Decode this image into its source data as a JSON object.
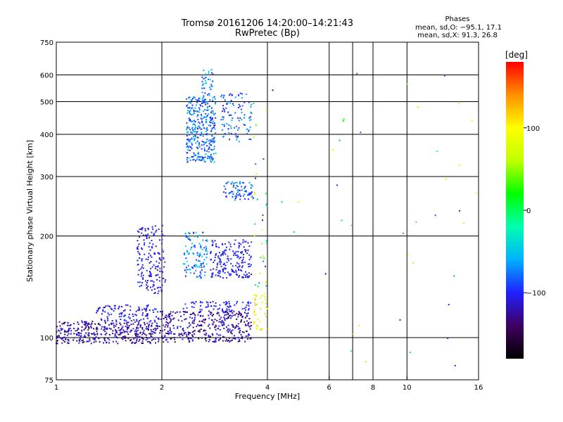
{
  "header": {
    "title_line1": "Tromsø 20161206 14:20:00–14:21:43",
    "title_line2": "RwPretec (Bp)"
  },
  "phase_box": {
    "heading": "Phases",
    "line_o": "mean, sd,O: −95.1, 17.1",
    "line_x": "mean, sd,X:  91.3, 26.8"
  },
  "chart_data": {
    "type": "scatter",
    "xlabel": "Frequency [MHz]",
    "ylabel": "Stationary phase Virtual Height [km]",
    "x_scale": "log",
    "y_scale": "log",
    "xlim": [
      1,
      16
    ],
    "ylim": [
      75,
      750
    ],
    "x_ticks": [
      1,
      2,
      4,
      6,
      8,
      10,
      16
    ],
    "x_tick_labels": [
      "1",
      "2",
      "4",
      "6",
      "8",
      "10",
      "16"
    ],
    "x_grid_lines": [
      2,
      4,
      6,
      7,
      8,
      10
    ],
    "y_ticks": [
      75,
      100,
      200,
      300,
      400,
      500,
      600,
      750
    ],
    "y_tick_labels": [
      "75",
      "100",
      "200",
      "300",
      "400",
      "500",
      "600",
      "750"
    ],
    "y_grid_lines": [
      100,
      200,
      300,
      400,
      500,
      600
    ],
    "grid": true,
    "colorbar": {
      "label": "[deg]",
      "range": [
        -180,
        180
      ],
      "ticks": [
        100,
        0,
        -100
      ],
      "tick_labels": [
        "100",
        "0",
        "−100"
      ],
      "colors": [
        "#000000",
        "#400060",
        "#2020ff",
        "#00b0ff",
        "#00ffb0",
        "#00ff00",
        "#c0ff00",
        "#ffff00",
        "#ff9000",
        "#ff0000"
      ]
    },
    "clusters": [
      {
        "f": [
          1.0,
          1.95
        ],
        "h": [
          96,
          112
        ],
        "n": 380,
        "phase": [
          -150,
          -95
        ]
      },
      {
        "f": [
          1.3,
          1.95
        ],
        "h": [
          112,
          125
        ],
        "n": 110,
        "phase": [
          -120,
          -90
        ]
      },
      {
        "f": [
          1.95,
          3.6
        ],
        "h": [
          97,
          120
        ],
        "n": 380,
        "phase": [
          -150,
          -95
        ]
      },
      {
        "f": [
          2.3,
          3.6
        ],
        "h": [
          120,
          128
        ],
        "n": 70,
        "phase": [
          -110,
          -90
        ]
      },
      {
        "f": [
          1.7,
          2.05
        ],
        "h": [
          135,
          215
        ],
        "n": 170,
        "phase": [
          -115,
          -95
        ]
      },
      {
        "f": [
          2.3,
          2.7
        ],
        "h": [
          150,
          205
        ],
        "n": 110,
        "phase": [
          -110,
          -30
        ]
      },
      {
        "f": [
          2.75,
          3.6
        ],
        "h": [
          150,
          195
        ],
        "n": 190,
        "phase": [
          -115,
          -90
        ]
      },
      {
        "f": [
          2.35,
          2.85
        ],
        "h": [
          330,
          520
        ],
        "n": 330,
        "phase": [
          -110,
          -50
        ]
      },
      {
        "f": [
          2.6,
          2.8
        ],
        "h": [
          500,
          630
        ],
        "n": 40,
        "phase": [
          -100,
          -40
        ]
      },
      {
        "f": [
          2.95,
          3.6
        ],
        "h": [
          380,
          530
        ],
        "n": 100,
        "phase": [
          -110,
          -50
        ]
      },
      {
        "f": [
          3.0,
          3.65
        ],
        "h": [
          255,
          290
        ],
        "n": 80,
        "phase": [
          -110,
          -60
        ]
      },
      {
        "f": [
          3.65,
          4.0
        ],
        "h": [
          105,
          135
        ],
        "n": 40,
        "phase": [
          85,
          125
        ]
      },
      {
        "f": [
          3.6,
          4.0
        ],
        "h": [
          140,
          500
        ],
        "n": 35,
        "phase": [
          -120,
          120
        ]
      },
      {
        "f": [
          4.0,
          16.0
        ],
        "h": [
          80,
          650
        ],
        "n": 40,
        "phase": [
          -130,
          120
        ]
      }
    ]
  }
}
